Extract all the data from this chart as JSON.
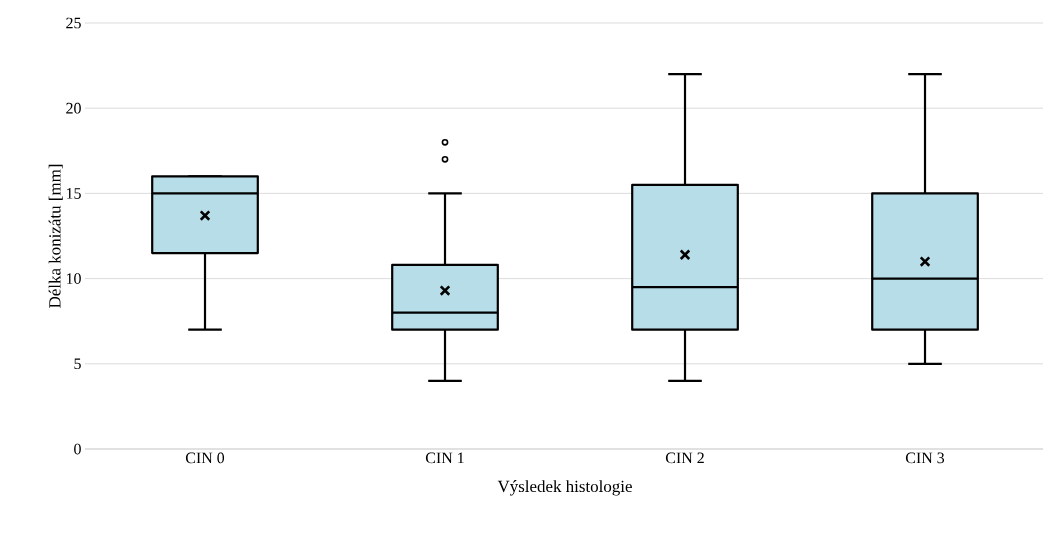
{
  "chart_data": {
    "type": "box",
    "xlabel": "Výsledek histologie",
    "ylabel": "Délka konizátu [mm]",
    "categories": [
      "CIN 0",
      "CIN 1",
      "CIN 2",
      "CIN 3"
    ],
    "boxes": [
      {
        "low": 7,
        "q1": 11.5,
        "median": 15,
        "q3": 16,
        "high": 16,
        "mean": 13.7
      },
      {
        "low": 4,
        "q1": 7,
        "median": 8,
        "q3": 10.8,
        "high": 15,
        "mean": 9.3,
        "outliers": [
          17,
          18
        ]
      },
      {
        "low": 4,
        "q1": 7,
        "median": 9.5,
        "q3": 15.5,
        "high": 22,
        "mean": 11.4
      },
      {
        "low": 5,
        "q1": 7,
        "median": 10,
        "q3": 15,
        "high": 22,
        "mean": 11
      }
    ],
    "color": "#b7dde8",
    "ylim": [
      0,
      25
    ],
    "yticks": [
      0,
      5,
      10,
      15,
      20,
      25
    ],
    "grid": "y"
  }
}
